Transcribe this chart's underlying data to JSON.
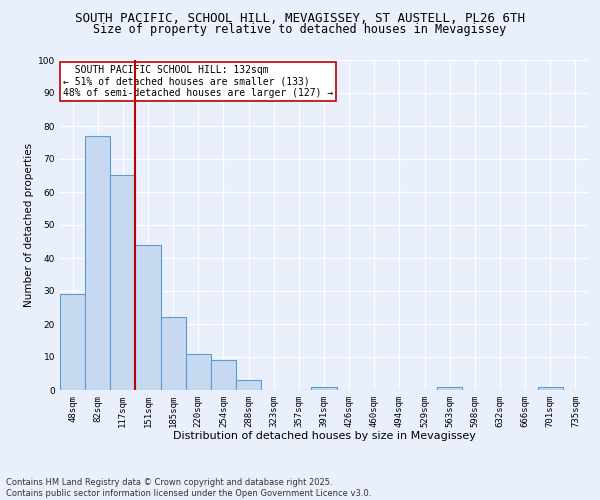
{
  "title": "SOUTH PACIFIC, SCHOOL HILL, MEVAGISSEY, ST AUSTELL, PL26 6TH",
  "subtitle": "Size of property relative to detached houses in Mevagissey",
  "xlabel": "Distribution of detached houses by size in Mevagissey",
  "ylabel": "Number of detached properties",
  "categories": [
    "48sqm",
    "82sqm",
    "117sqm",
    "151sqm",
    "185sqm",
    "220sqm",
    "254sqm",
    "288sqm",
    "323sqm",
    "357sqm",
    "391sqm",
    "426sqm",
    "460sqm",
    "494sqm",
    "529sqm",
    "563sqm",
    "598sqm",
    "632sqm",
    "666sqm",
    "701sqm",
    "735sqm"
  ],
  "values": [
    29,
    77,
    65,
    44,
    22,
    11,
    9,
    3,
    0,
    0,
    1,
    0,
    0,
    0,
    0,
    1,
    0,
    0,
    0,
    1,
    0
  ],
  "bar_color": "#c6d9f0",
  "bar_edge_color": "#5b9bd5",
  "bar_edge_width": 0.8,
  "redline_x": 2.5,
  "annotation_line1": "  SOUTH PACIFIC SCHOOL HILL: 132sqm",
  "annotation_line2": "← 51% of detached houses are smaller (133)",
  "annotation_line3": "48% of semi-detached houses are larger (127) →",
  "annotation_box_color": "#ffffff",
  "annotation_box_edge": "#c00000",
  "ylim": [
    0,
    100
  ],
  "yticks": [
    0,
    10,
    20,
    30,
    40,
    50,
    60,
    70,
    80,
    90,
    100
  ],
  "footer1": "Contains HM Land Registry data © Crown copyright and database right 2025.",
  "footer2": "Contains public sector information licensed under the Open Government Licence v3.0.",
  "bg_color": "#eaf0fb",
  "plot_bg_color": "#eaf0fb",
  "grid_color": "#ffffff",
  "title_fontsize": 9,
  "subtitle_fontsize": 8.5,
  "xlabel_fontsize": 8,
  "ylabel_fontsize": 7.5,
  "annotation_fontsize": 7,
  "tick_fontsize": 6.5,
  "footer_fontsize": 6
}
